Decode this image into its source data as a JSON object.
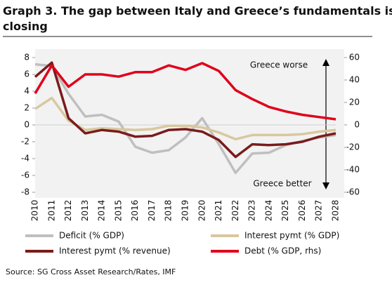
{
  "chart_data": {
    "type": "line",
    "title": "Graph 3. The gap between Italy and Greece’s fundamentals is closing",
    "source": "Source: SG Cross Asset Research/Rates, IMF",
    "annotations": [
      "Greece worse",
      "Greece better"
    ],
    "categories": [
      "2010",
      "2011",
      "2012",
      "2013",
      "2014",
      "2015",
      "2016",
      "2017",
      "2018",
      "2019",
      "2020",
      "2021",
      "2022",
      "2023",
      "2024",
      "2025",
      "2026",
      "2027",
      "2028"
    ],
    "series": [
      {
        "name": "Deficit (% GDP)",
        "color": "#bfbfbf",
        "values": [
          7.2,
          7.0,
          3.7,
          1.0,
          1.2,
          0.4,
          -2.6,
          -3.3,
          -3.0,
          -1.5,
          0.8,
          -2.3,
          -5.7,
          -3.4,
          -3.3,
          -2.4,
          -1.9,
          -1.5,
          -1.2
        ]
      },
      {
        "name": "Interest pymt (% GDP)",
        "color": "#d8c89f",
        "values": [
          1.9,
          3.2,
          0.5,
          -0.6,
          -0.4,
          -0.5,
          -0.6,
          -0.5,
          -0.1,
          -0.1,
          -0.3,
          -0.9,
          -1.7,
          -1.2,
          -1.2,
          -1.2,
          -1.1,
          -0.8,
          -0.6
        ]
      },
      {
        "name": "Interest pymt (% revenue)",
        "color": "#7a1b1b",
        "values": [
          5.7,
          7.4,
          0.8,
          -1.0,
          -0.6,
          -0.8,
          -1.4,
          -1.3,
          -0.6,
          -0.5,
          -0.8,
          -1.8,
          -3.8,
          -2.3,
          -2.4,
          -2.3,
          -2.0,
          -1.4,
          -1.0
        ]
      },
      {
        "name": "Debt (% GDP, rhs)",
        "color": "#e0001b",
        "axis": "y2",
        "values": [
          28,
          53,
          34,
          45,
          45,
          43,
          47,
          47,
          53,
          49,
          55,
          48,
          31,
          23,
          16,
          12,
          9,
          7,
          5
        ]
      }
    ],
    "ylim": [
      -8,
      8
    ],
    "yticks": [
      -8,
      -6,
      -4,
      -2,
      0,
      2,
      4,
      6,
      8
    ],
    "y2lim": [
      -60,
      60
    ],
    "y2ticks": [
      -60,
      -40,
      -20,
      0,
      20,
      40,
      60
    ],
    "grid": false
  }
}
